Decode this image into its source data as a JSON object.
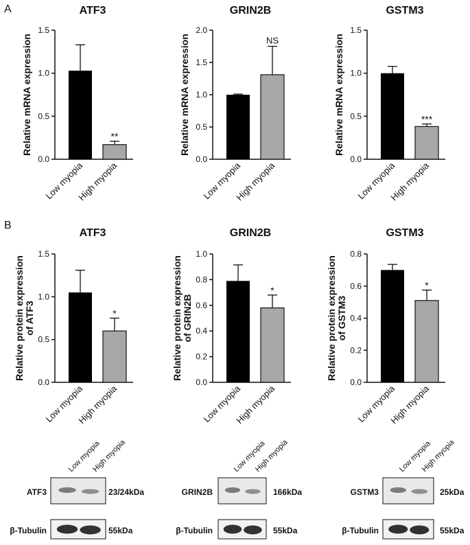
{
  "panel_labels": {
    "a": "A",
    "b": "B"
  },
  "colors": {
    "low": "#000000",
    "high": "#a8a8a8",
    "axis": "#111111",
    "band": "#222222",
    "blot_bg": "#e9e9e9"
  },
  "chart_data": [
    {
      "type": "bar",
      "panel": "A",
      "title": "ATF3",
      "ylabel": [
        "Relative mRNA expression"
      ],
      "categories": [
        "Low myopia",
        "High myopia"
      ],
      "values": [
        1.03,
        0.17
      ],
      "errors": [
        0.3,
        0.04
      ],
      "ylim": [
        0,
        1.5
      ],
      "yticks": [
        "0.0",
        "0.5",
        "1.0",
        "1.5"
      ],
      "tick_values": [
        0,
        0.5,
        1.0,
        1.5
      ],
      "significance": "**"
    },
    {
      "type": "bar",
      "panel": "A",
      "title": "GRIN2B",
      "ylabel": [
        "Relative mRNA expression"
      ],
      "categories": [
        "Low myopia",
        "High myopia"
      ],
      "values": [
        1.0,
        1.31
      ],
      "errors": [
        0.01,
        0.44
      ],
      "ylim": [
        0,
        2.0
      ],
      "yticks": [
        "0.0",
        "0.5",
        "1.0",
        "1.5",
        "2.0"
      ],
      "tick_values": [
        0,
        0.5,
        1.0,
        1.5,
        2.0
      ],
      "significance": "NS"
    },
    {
      "type": "bar",
      "panel": "A",
      "title": "GSTM3",
      "ylabel": [
        "Relative mRNA expression"
      ],
      "categories": [
        "Low myopia",
        "High myopia"
      ],
      "values": [
        1.0,
        0.38
      ],
      "errors": [
        0.08,
        0.03
      ],
      "ylim": [
        0,
        1.5
      ],
      "yticks": [
        "0.0",
        "0.5",
        "1.0",
        "1.5"
      ],
      "tick_values": [
        0,
        0.5,
        1.0,
        1.5
      ],
      "significance": "***"
    },
    {
      "type": "bar",
      "panel": "B",
      "title": "ATF3",
      "ylabel": [
        "Relative protein expression",
        "of ATF3"
      ],
      "categories": [
        "Low myopia",
        "High myopia"
      ],
      "values": [
        1.05,
        0.6
      ],
      "errors": [
        0.26,
        0.15
      ],
      "ylim": [
        0,
        1.5
      ],
      "yticks": [
        "0.0",
        "0.5",
        "1.0",
        "1.5"
      ],
      "tick_values": [
        0,
        0.5,
        1.0,
        1.5
      ],
      "significance": "*"
    },
    {
      "type": "bar",
      "panel": "B",
      "title": "GRIN2B",
      "ylabel": [
        "Relative protein expression",
        "of GRIN2B"
      ],
      "categories": [
        "Low myopia",
        "High myopia"
      ],
      "values": [
        0.79,
        0.58
      ],
      "errors": [
        0.125,
        0.1
      ],
      "ylim": [
        0,
        1.0
      ],
      "yticks": [
        "0.0",
        "0.2",
        "0.4",
        "0.6",
        "0.8",
        "1.0"
      ],
      "tick_values": [
        0,
        0.2,
        0.4,
        0.6,
        0.8,
        1.0
      ],
      "significance": "*"
    },
    {
      "type": "bar",
      "panel": "B",
      "title": "GSTM3",
      "ylabel": [
        "Relative protein expression",
        "of GSTM3"
      ],
      "categories": [
        "Low myopia",
        "High myopia"
      ],
      "values": [
        0.7,
        0.51
      ],
      "errors": [
        0.035,
        0.065
      ],
      "ylim": [
        0,
        0.8
      ],
      "yticks": [
        "0.0",
        "0.2",
        "0.4",
        "0.6",
        "0.8"
      ],
      "tick_values": [
        0,
        0.2,
        0.4,
        0.6,
        0.8
      ],
      "significance": "*"
    }
  ],
  "blots": [
    {
      "lanes": [
        "Low myopia",
        "High myopia"
      ],
      "protein": "ATF3",
      "protein_size": "23/24kDa",
      "control": "β-Tubulin",
      "control_size": "55kDa"
    },
    {
      "lanes": [
        "Low myopia",
        "High myopia"
      ],
      "protein": "GRIN2B",
      "protein_size": "166kDa",
      "control": "β-Tubulin",
      "control_size": "55kDa"
    },
    {
      "lanes": [
        "Low myopia",
        "High myopia"
      ],
      "protein": "GSTM3",
      "protein_size": "25kDa",
      "control": "β-Tubulin",
      "control_size": "55kDa"
    }
  ]
}
